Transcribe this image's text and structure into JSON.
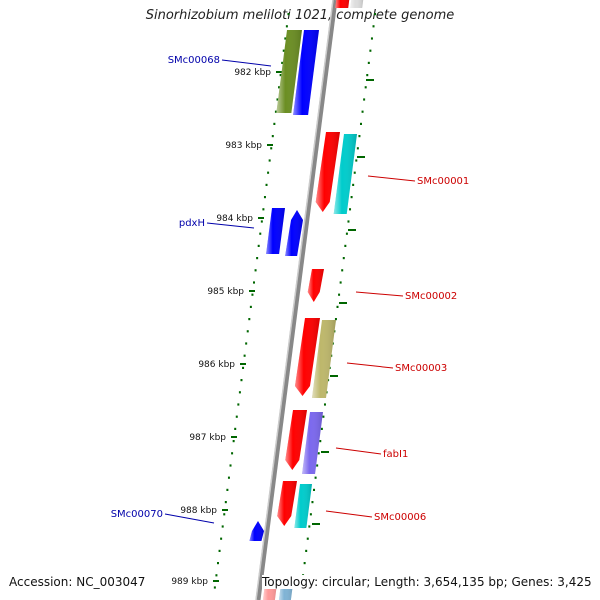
{
  "title": "Sinorhizobium meliloti 1021, complete genome",
  "footer": {
    "accession": "Accession: NC_003047",
    "details": "Topology: circular; Length: 3,654,135 bp; Genes: 3,425"
  },
  "ticks": [
    "982 kbp",
    "983 kbp",
    "984 kbp",
    "985 kbp",
    "986 kbp",
    "987 kbp",
    "988 kbp",
    "989 kbp"
  ],
  "labels_left": [
    {
      "text": "SMc00068",
      "color": "#0000aa"
    },
    {
      "text": "pdxH",
      "color": "#0000aa"
    },
    {
      "text": "SMc00070",
      "color": "#0000aa"
    }
  ],
  "labels_right": [
    {
      "text": "SMc00001",
      "color": "#cc0000"
    },
    {
      "text": "SMc00002",
      "color": "#cc0000"
    },
    {
      "text": "SMc00003",
      "color": "#cc0000"
    },
    {
      "text": "fabI1",
      "color": "#cc0000"
    },
    {
      "text": "SMc00006",
      "color": "#cc0000"
    }
  ],
  "colors": {
    "backbone": "#888888",
    "tick": "#006600",
    "gene_forward": "#ff0000",
    "gene_reverse": "#0000ff",
    "cog_cyan": "#00cccc",
    "cog_olive": "#6b8e23",
    "cog_khaki": "#bdb76b",
    "cog_purple": "#7b68ee"
  }
}
